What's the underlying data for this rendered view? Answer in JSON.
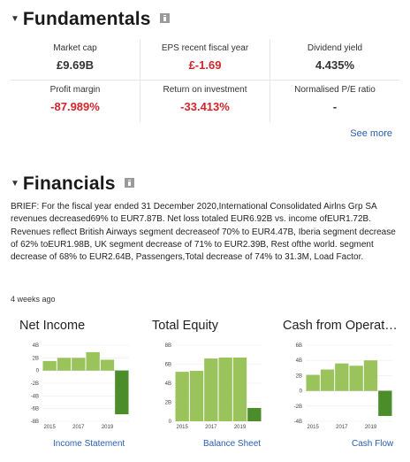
{
  "fundamentals": {
    "title": "Fundamentals",
    "metrics": [
      {
        "label": "Market cap",
        "value": "£9.69B",
        "negative": false
      },
      {
        "label": "EPS recent fiscal year",
        "value": "£-1.69",
        "negative": true
      },
      {
        "label": "Dividend yield",
        "value": "4.435%",
        "negative": false
      },
      {
        "label": "Profit margin",
        "value": "-87.989%",
        "negative": true
      },
      {
        "label": "Return on investment",
        "value": "-33.413%",
        "negative": true
      },
      {
        "label": "Normalised P/E ratio",
        "value": "-",
        "negative": false
      }
    ],
    "see_more": "See more"
  },
  "financials": {
    "title": "Financials",
    "brief": "BRIEF: For the fiscal year ended 31 December 2020,International Consolidated Airlns Grp SA revenues decreased69% to EUR7.87B. Net loss totaled EUR6.92B vs. income ofEUR1.72B. Revenues reflect British Airways segment decreaseof 70% to EUR4.47B, Iberia segment decrease of 62% toEUR1.98B, UK segment decrease of 71% to EUR2.39B, Rest ofthe world. segment decrease of 68% to EUR2.64B, Passengers,Total decrease of 74% to 31.3M, Load Factor.",
    "timestamp": "4 weeks ago"
  },
  "colors": {
    "bar": "#9ac45b",
    "bar_last_dark": "#4b8c2b",
    "link": "#2a5db0",
    "negative": "#d3262b"
  },
  "chart_data": [
    {
      "type": "bar",
      "title": "Net Income",
      "link": "Income Statement",
      "x": [
        2015,
        2016,
        2017,
        2018,
        2019,
        2020
      ],
      "x_tick_labels": [
        "2015",
        "2017",
        "2019"
      ],
      "y_tick_labels": [
        "4B",
        "2B",
        "0",
        "-2B",
        "-4B",
        "-6B",
        "-8B"
      ],
      "ylim": [
        -8,
        4
      ],
      "values": [
        1.5,
        2.0,
        2.0,
        2.9,
        1.7,
        -6.9
      ]
    },
    {
      "type": "bar",
      "title": "Total Equity",
      "link": "Balance Sheet",
      "x": [
        2015,
        2016,
        2017,
        2018,
        2019,
        2020
      ],
      "x_tick_labels": [
        "2015",
        "2017",
        "2019"
      ],
      "y_tick_labels": [
        "8B",
        "6B",
        "4B",
        "2B",
        "0"
      ],
      "ylim": [
        0,
        8
      ],
      "values": [
        5.2,
        5.3,
        6.6,
        6.7,
        6.7,
        1.4
      ]
    },
    {
      "type": "bar",
      "title": "Cash from Operati...",
      "link": "Cash Flow",
      "x": [
        2015,
        2016,
        2017,
        2018,
        2019,
        2020
      ],
      "x_tick_labels": [
        "2015",
        "2017",
        "2019"
      ],
      "y_tick_labels": [
        "6B",
        "4B",
        "2B",
        "0",
        "-2B",
        "-4B"
      ],
      "ylim": [
        -4,
        6
      ],
      "values": [
        2.1,
        2.8,
        3.6,
        3.3,
        4.0,
        -3.3
      ]
    }
  ]
}
